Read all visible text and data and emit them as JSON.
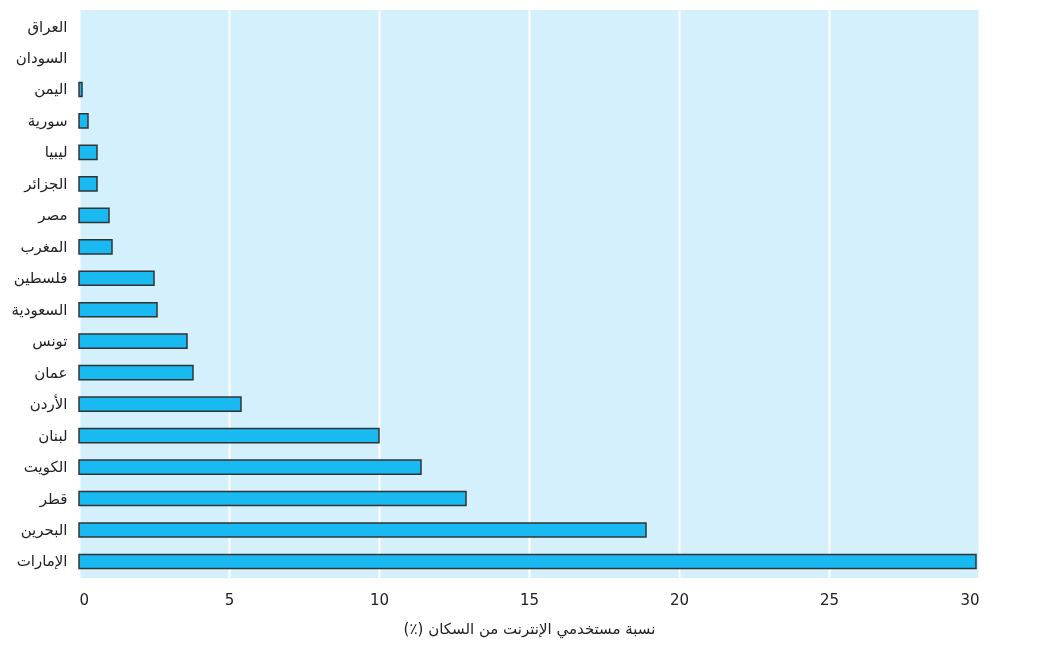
{
  "chart_data": {
    "type": "bar",
    "orientation": "horizontal",
    "categories": [
      "العراق",
      "السودان",
      "اليمن",
      "سورية",
      "ليبيا",
      "الجزائر",
      "مصر",
      "المغرب",
      "فلسطين",
      "السعودية",
      "تونس",
      "عمان",
      "الأردن",
      "لبنان",
      "الكويت",
      "قطر",
      "البحرين",
      "الإمارات"
    ],
    "values": [
      0,
      0,
      0.1,
      0.3,
      0.6,
      0.6,
      1.0,
      1.1,
      2.5,
      2.6,
      3.6,
      3.8,
      5.4,
      10.0,
      11.4,
      12.9,
      18.9,
      29.9
    ],
    "color": "#19b9f2",
    "xlabel": "(٪) نسبة مستخدمي الإنترنت من السكان",
    "xlim": [
      0,
      30
    ],
    "xticks": [
      0,
      5,
      10,
      15,
      20,
      25,
      30
    ],
    "grid": "x"
  }
}
